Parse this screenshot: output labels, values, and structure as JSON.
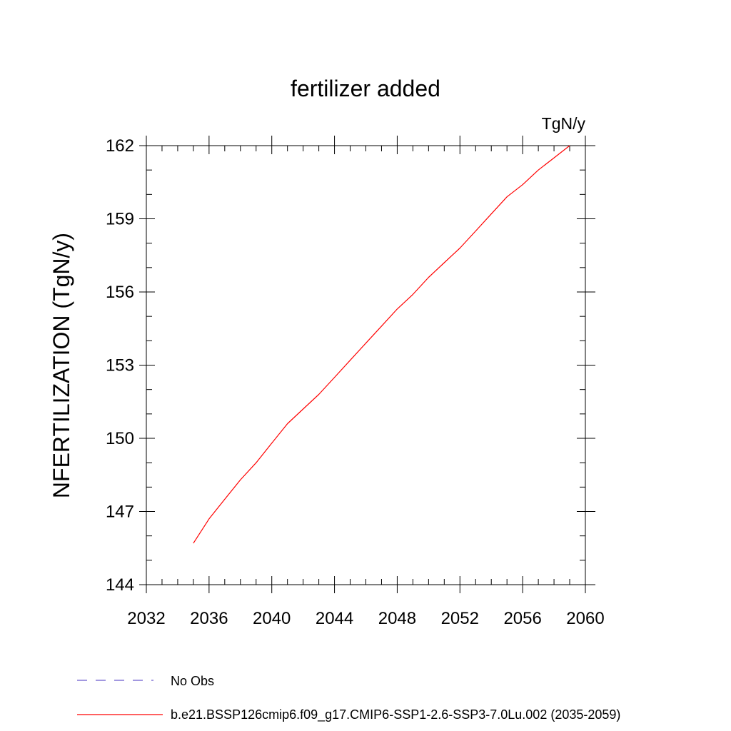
{
  "chart_data": {
    "type": "line",
    "title": "fertilizer added",
    "units_label": "TgN/y",
    "xlabel": "",
    "ylabel": "NFERTILIZATION  (TgN/y)",
    "xlim": [
      2032,
      2060
    ],
    "ylim": [
      144,
      162
    ],
    "x_ticks": [
      2032,
      2036,
      2040,
      2044,
      2048,
      2052,
      2056,
      2060
    ],
    "y_ticks": [
      144,
      147,
      150,
      153,
      156,
      159,
      162
    ],
    "grid": false,
    "legend_position": "bottom",
    "series": [
      {
        "name": "b.e21.BSSP126cmip6.f09_g17.CMIP6-SSP1-2.6-SSP3-7.0Lu.002 (2035-2059)",
        "color": "#ff0000",
        "style": "solid",
        "x": [
          2035,
          2036,
          2037,
          2038,
          2039,
          2040,
          2041,
          2042,
          2043,
          2044,
          2045,
          2046,
          2047,
          2048,
          2049,
          2050,
          2051,
          2052,
          2053,
          2054,
          2055,
          2056,
          2057,
          2058,
          2059
        ],
        "y": [
          145.7,
          146.7,
          147.5,
          148.3,
          149.0,
          149.8,
          150.6,
          151.2,
          151.8,
          152.5,
          153.2,
          153.9,
          154.6,
          155.3,
          155.9,
          156.6,
          157.2,
          157.8,
          158.5,
          159.2,
          159.9,
          160.4,
          161.0,
          161.5,
          162.0
        ]
      }
    ],
    "legend": [
      {
        "label": "No Obs",
        "color": "#6a5acd",
        "style": "dashed"
      },
      {
        "label": "b.e21.BSSP126cmip6.f09_g17.CMIP6-SSP1-2.6-SSP3-7.0Lu.002 (2035-2059)",
        "color": "#ff0000",
        "style": "solid"
      }
    ]
  }
}
